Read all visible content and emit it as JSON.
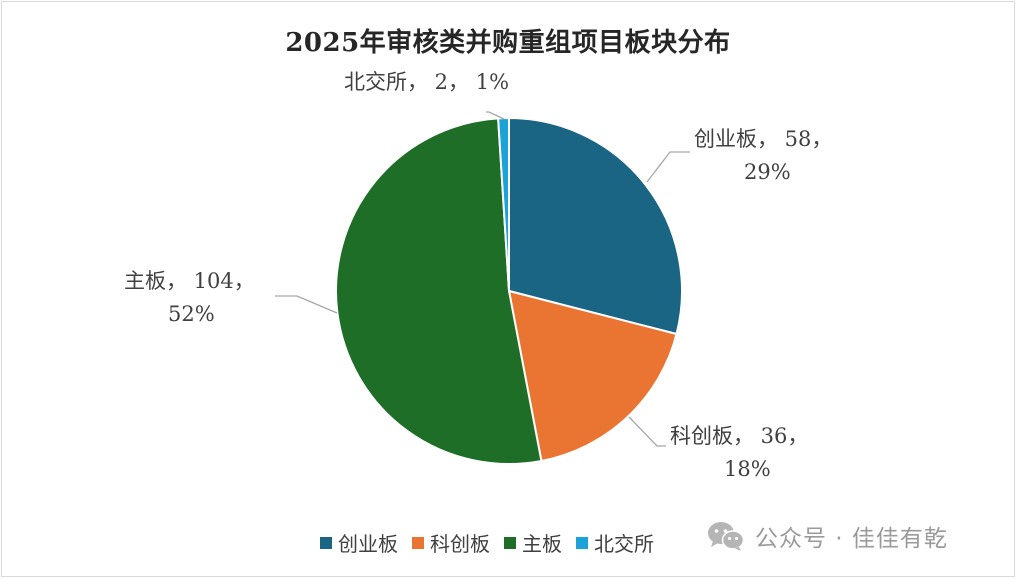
{
  "chart_data": {
    "type": "pie",
    "title": "2025年审核类并购重组项目板块分布",
    "slices": [
      {
        "name": "创业板",
        "value": 58,
        "percent": "29%",
        "color": "#1a6484",
        "label_line1": "创业板， 58，",
        "label_line2": "29%"
      },
      {
        "name": "科创板",
        "value": 36,
        "percent": "18%",
        "color": "#ea7533",
        "label_line1": "科创板， 36，",
        "label_line2": "18%"
      },
      {
        "name": "主板",
        "value": 104,
        "percent": "52%",
        "color": "#1e6e27",
        "label_line1": "主板， 104，",
        "label_line2": "52%"
      },
      {
        "name": "北交所",
        "value": 2,
        "percent": "1%",
        "color": "#1ba2d6",
        "label_line1": "北交所， 2， 1%",
        "label_line2": ""
      }
    ],
    "legend_position": "bottom"
  },
  "watermark": {
    "icon": "wechat-icon",
    "text": "公众号 · 佳佳有乾"
  }
}
